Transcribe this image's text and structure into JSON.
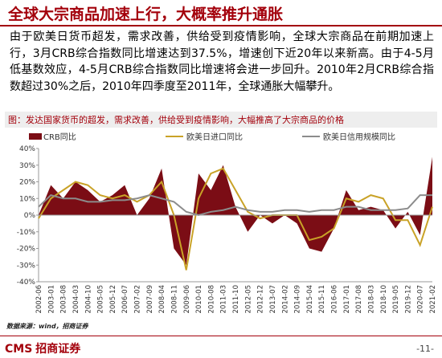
{
  "header": {
    "title": "全球大宗商品加速上行，大概率推升通胀"
  },
  "body": {
    "paragraph": "由于欧美日货币超发，需求改善，供给受到疫情影响，全球大宗商品在前期加速上行，3月CRB综合指数同比增速达到37.5%，增速创下近20年以来新高。由于4-5月低基数效应，4-5月CRB综合指数同比增速将会进一步回升。2010年2月CRB综合指数超过30%之后，2010年四季度至2011年，全球通胀大幅攀升。"
  },
  "chart_data": {
    "type": "combo",
    "title": "图：发达国家货币的超发，需求改善，供给受到疫情影响，大幅推高了大宗商品的价格",
    "categories": [
      "2002-06",
      "2003-01",
      "2003-08",
      "2004-03",
      "2004-10",
      "2005-05",
      "2005-12",
      "2006-07",
      "2007-02",
      "2007-09",
      "2008-04",
      "2008-11",
      "2009-06",
      "2010-01",
      "2010-08",
      "2011-03",
      "2011-10",
      "2012-05",
      "2012-12",
      "2013-07",
      "2014-02",
      "2014-09",
      "2015-04",
      "2015-11",
      "2016-06",
      "2017-01",
      "2017-08",
      "2018-03",
      "2018-10",
      "2019-05",
      "2019-12",
      "2020-07",
      "2021-02"
    ],
    "series": [
      {
        "name": "CRB同比",
        "kind": "area",
        "color": "#7b0d15",
        "values": [
          0,
          18,
          10,
          20,
          15,
          8,
          12,
          18,
          0,
          10,
          28,
          -20,
          -30,
          25,
          15,
          30,
          5,
          -10,
          0,
          -5,
          0,
          -5,
          -20,
          -22,
          -8,
          15,
          3,
          5,
          3,
          -8,
          2,
          -12,
          35
        ]
      },
      {
        "name": "欧美日进口同比",
        "kind": "line",
        "color": "#c9a227",
        "values": [
          -2,
          10,
          15,
          20,
          18,
          12,
          10,
          12,
          8,
          12,
          20,
          0,
          -33,
          10,
          25,
          28,
          15,
          2,
          -2,
          0,
          0,
          0,
          -15,
          -13,
          -8,
          10,
          8,
          12,
          10,
          -3,
          -3,
          -18,
          5
        ]
      },
      {
        "name": "欧美日信用规模同比",
        "kind": "line",
        "color": "#8c8c8c",
        "values": [
          5,
          12,
          10,
          10,
          8,
          8,
          9,
          9,
          10,
          12,
          10,
          8,
          2,
          0,
          2,
          3,
          5,
          3,
          2,
          2,
          3,
          3,
          2,
          3,
          3,
          5,
          5,
          3,
          3,
          3,
          4,
          12,
          12
        ]
      }
    ],
    "ylim": [
      -40,
      40
    ],
    "yticks": [
      {
        "value": -40,
        "label": "-40%"
      },
      {
        "value": -30,
        "label": "-30%"
      },
      {
        "value": -20,
        "label": "-20%"
      },
      {
        "value": -10,
        "label": "-10%"
      },
      {
        "value": 0,
        "label": "0%"
      },
      {
        "value": 10,
        "label": "10%"
      },
      {
        "value": 20,
        "label": "20%"
      },
      {
        "value": 30,
        "label": "30%"
      },
      {
        "value": 40,
        "label": "40%"
      }
    ],
    "source": "数据来源：wind，招商证券"
  },
  "footer": {
    "logo": "CMS",
    "company": "招商证券",
    "page": "-11-"
  }
}
